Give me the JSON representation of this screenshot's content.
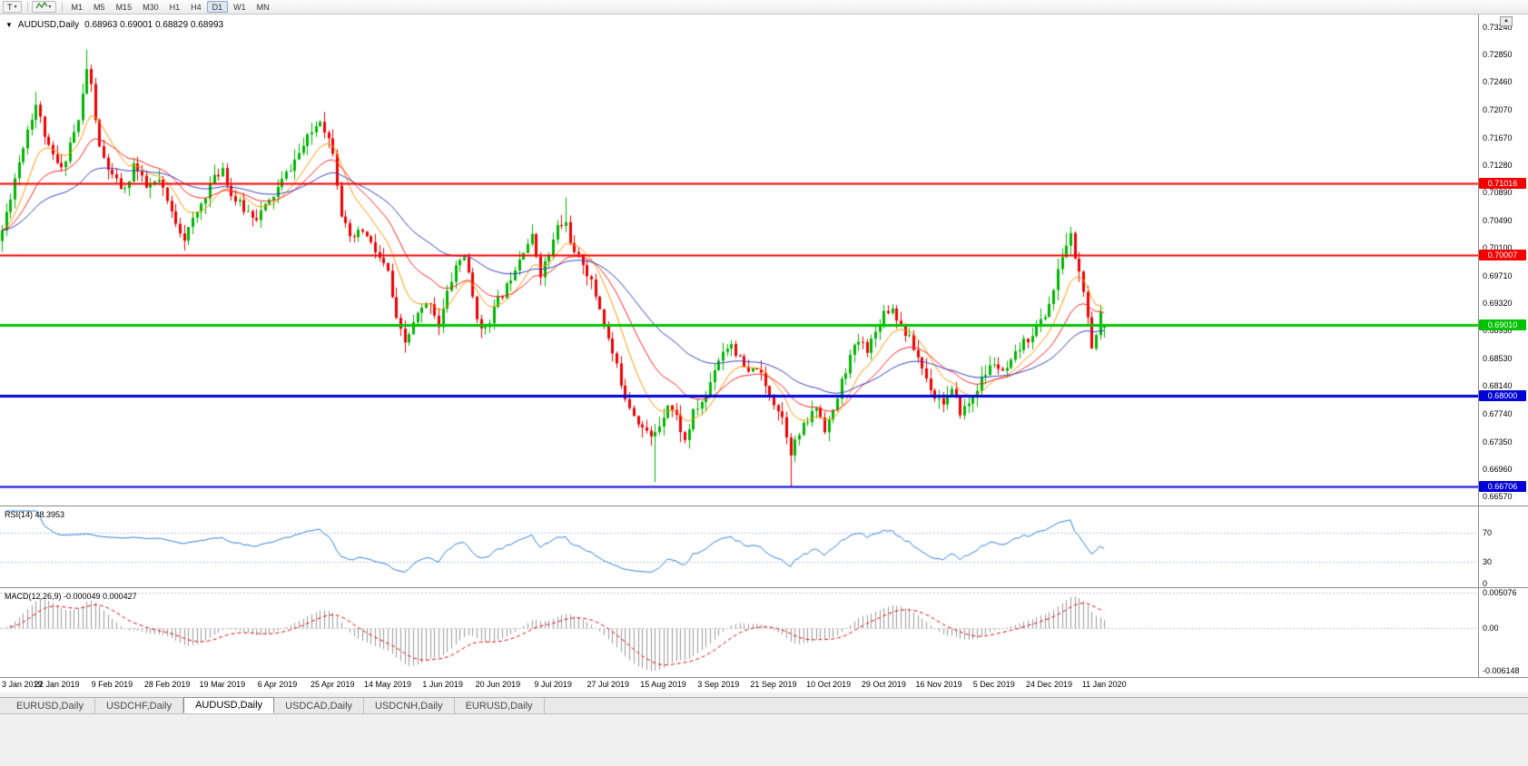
{
  "toolbar": {
    "template_button_label": "T",
    "timeframes": [
      "M1",
      "M5",
      "M15",
      "M30",
      "H1",
      "H4",
      "D1",
      "W1",
      "MN"
    ],
    "active_timeframe": "D1"
  },
  "chart": {
    "symbol_period": "AUDUSD,Daily",
    "ohlc": "0.68963 0.69001 0.68829 0.68993"
  },
  "price_axis": {
    "ticks": [
      "0.73240",
      "0.72850",
      "0.72460",
      "0.72070",
      "0.71670",
      "0.71280",
      "0.70890",
      "0.70490",
      "0.70100",
      "0.69710",
      "0.69320",
      "0.68930",
      "0.68530",
      "0.68140",
      "0.67740",
      "0.67350",
      "0.66960",
      "0.66570"
    ]
  },
  "levels": [
    {
      "label": "0.71016",
      "price": 0.71016,
      "color": "#f20000",
      "width": 2
    },
    {
      "label": "0.70007",
      "price": 0.70007,
      "color": "#f20000",
      "width": 2
    },
    {
      "label": "0.69010",
      "price": 0.6901,
      "color": "#00c400",
      "width": 3
    },
    {
      "label": "0.68000",
      "price": 0.68,
      "color": "#0000d8",
      "width": 3
    },
    {
      "label": "0.66706",
      "price": 0.66706,
      "color": "#0000d8",
      "width": 2
    }
  ],
  "date_axis": [
    "3 Jan 2019",
    "22 Jan 2019",
    "9 Feb 2019",
    "28 Feb 2019",
    "19 Mar 2019",
    "6 Apr 2019",
    "25 Apr 2019",
    "14 May 2019",
    "1 Jun 2019",
    "20 Jun 2019",
    "9 Jul 2019",
    "27 Jul 2019",
    "15 Aug 2019",
    "3 Sep 2019",
    "21 Sep 2019",
    "10 Oct 2019",
    "29 Oct 2019",
    "16 Nov 2019",
    "5 Dec 2019",
    "24 Dec 2019",
    "11 Jan 2020"
  ],
  "rsi": {
    "label": "RSI(14) 48.3953",
    "axis": [
      "70",
      "30",
      "0"
    ]
  },
  "macd": {
    "label": "MACD(12,26,9) -0.000049 0.000427",
    "axis": [
      "0.005076",
      "0.00",
      "-0.006148"
    ]
  },
  "tabs": [
    {
      "label": "EURUSD,Daily",
      "active": false
    },
    {
      "label": "USDCHF,Daily",
      "active": false
    },
    {
      "label": "AUDUSD,Daily",
      "active": true
    },
    {
      "label": "USDCAD,Daily",
      "active": false
    },
    {
      "label": "USDCNH,Daily",
      "active": false
    },
    {
      "label": "EURUSD,Daily",
      "active": false
    }
  ],
  "chart_data": {
    "type": "candlestick",
    "symbol": "AUDUSD",
    "timeframe": "Daily",
    "y_range": [
      0.6657,
      0.7324
    ],
    "candle_count": 261,
    "last_ohlc": {
      "o": 0.68963,
      "h": 0.69001,
      "l": 0.68829,
      "c": 0.68993
    },
    "waypoints": [
      [
        0,
        0.7035
      ],
      [
        3,
        0.711
      ],
      [
        6,
        0.718
      ],
      [
        8,
        0.7215
      ],
      [
        11,
        0.715
      ],
      [
        14,
        0.712
      ],
      [
        16,
        0.716
      ],
      [
        18,
        0.719
      ],
      [
        20,
        0.7265
      ],
      [
        21,
        0.724
      ],
      [
        23,
        0.715
      ],
      [
        26,
        0.711
      ],
      [
        29,
        0.709
      ],
      [
        31,
        0.713
      ],
      [
        34,
        0.7095
      ],
      [
        37,
        0.7105
      ],
      [
        40,
        0.706
      ],
      [
        43,
        0.7025
      ],
      [
        46,
        0.706
      ],
      [
        49,
        0.71
      ],
      [
        52,
        0.7125
      ],
      [
        54,
        0.7085
      ],
      [
        57,
        0.7065
      ],
      [
        60,
        0.7055
      ],
      [
        63,
        0.7075
      ],
      [
        66,
        0.7105
      ],
      [
        69,
        0.7135
      ],
      [
        72,
        0.7165
      ],
      [
        75,
        0.7195
      ],
      [
        78,
        0.715
      ],
      [
        80,
        0.706
      ],
      [
        82,
        0.702
      ],
      [
        85,
        0.7035
      ],
      [
        88,
        0.7005
      ],
      [
        91,
        0.6975
      ],
      [
        93,
        0.6905
      ],
      [
        95,
        0.6875
      ],
      [
        98,
        0.6915
      ],
      [
        101,
        0.6935
      ],
      [
        103,
        0.69
      ],
      [
        105,
        0.6945
      ],
      [
        107,
        0.6985
      ],
      [
        109,
        0.7
      ],
      [
        111,
        0.694
      ],
      [
        113,
        0.689
      ],
      [
        115,
        0.691
      ],
      [
        117,
        0.6935
      ],
      [
        119,
        0.6955
      ],
      [
        121,
        0.6985
      ],
      [
        123,
        0.701
      ],
      [
        125,
        0.7025
      ],
      [
        127,
        0.6975
      ],
      [
        129,
        0.7
      ],
      [
        131,
        0.704
      ],
      [
        133,
        0.7045
      ],
      [
        135,
        0.7
      ],
      [
        137,
        0.699
      ],
      [
        139,
        0.696
      ],
      [
        141,
        0.6925
      ],
      [
        143,
        0.688
      ],
      [
        145,
        0.684
      ],
      [
        147,
        0.68
      ],
      [
        149,
        0.6775
      ],
      [
        151,
        0.6755
      ],
      [
        153,
        0.674
      ],
      [
        155,
        0.676
      ],
      [
        157,
        0.679
      ],
      [
        159,
        0.677
      ],
      [
        161,
        0.6735
      ],
      [
        163,
        0.6775
      ],
      [
        166,
        0.68
      ],
      [
        168,
        0.684
      ],
      [
        170,
        0.6865
      ],
      [
        172,
        0.6875
      ],
      [
        174,
        0.685
      ],
      [
        176,
        0.683
      ],
      [
        178,
        0.6842
      ],
      [
        180,
        0.6812
      ],
      [
        182,
        0.6792
      ],
      [
        184,
        0.677
      ],
      [
        186,
        0.6722
      ],
      [
        188,
        0.6745
      ],
      [
        190,
        0.6765
      ],
      [
        192,
        0.6785
      ],
      [
        194,
        0.6755
      ],
      [
        196,
        0.6775
      ],
      [
        198,
        0.682
      ],
      [
        200,
        0.6855
      ],
      [
        202,
        0.6878
      ],
      [
        204,
        0.6868
      ],
      [
        206,
        0.689
      ],
      [
        208,
        0.692
      ],
      [
        210,
        0.6925
      ],
      [
        212,
        0.69
      ],
      [
        214,
        0.688
      ],
      [
        216,
        0.6855
      ],
      [
        218,
        0.6825
      ],
      [
        220,
        0.68
      ],
      [
        222,
        0.6792
      ],
      [
        224,
        0.6805
      ],
      [
        226,
        0.6778
      ],
      [
        228,
        0.6788
      ],
      [
        230,
        0.6812
      ],
      [
        232,
        0.6832
      ],
      [
        234,
        0.6848
      ],
      [
        236,
        0.683
      ],
      [
        238,
        0.6845
      ],
      [
        240,
        0.6868
      ],
      [
        242,
        0.6882
      ],
      [
        244,
        0.6898
      ],
      [
        246,
        0.6915
      ],
      [
        248,
        0.695
      ],
      [
        250,
        0.7
      ],
      [
        252,
        0.7028
      ],
      [
        253,
        0.6998
      ],
      [
        255,
        0.695
      ],
      [
        257,
        0.6862
      ],
      [
        258,
        0.6886
      ],
      [
        259,
        0.692
      ],
      [
        260,
        0.68993
      ]
    ],
    "spikes": [
      {
        "i": 0,
        "low": 0.7005
      },
      {
        "i": 8,
        "high": 0.7232
      },
      {
        "i": 20,
        "high": 0.7292
      },
      {
        "i": 133,
        "high": 0.7082
      },
      {
        "i": 154,
        "low": 0.6677
      },
      {
        "i": 186,
        "low": 0.6671
      },
      {
        "i": 251,
        "high": 0.7032
      }
    ],
    "indicators": {
      "ma_fast": {
        "period": 10,
        "color": "#ff9500"
      },
      "ma_mid": {
        "period": 21,
        "color": "#ff2020"
      },
      "ma_slow": {
        "period": 45,
        "color": "#3340c0"
      },
      "rsi": {
        "period": 14,
        "color": "#2f7ed8",
        "levels": [
          70,
          30
        ],
        "level_color": "#a8c4e0"
      },
      "macd": {
        "fast": 12,
        "slow": 26,
        "signal": 9,
        "hist_color": "#9a9a9a",
        "signal_color": "#e00000",
        "zero_color": "#c0c0c0"
      }
    },
    "candle_up_color": "#00b400",
    "candle_down_color": "#ee0000"
  }
}
